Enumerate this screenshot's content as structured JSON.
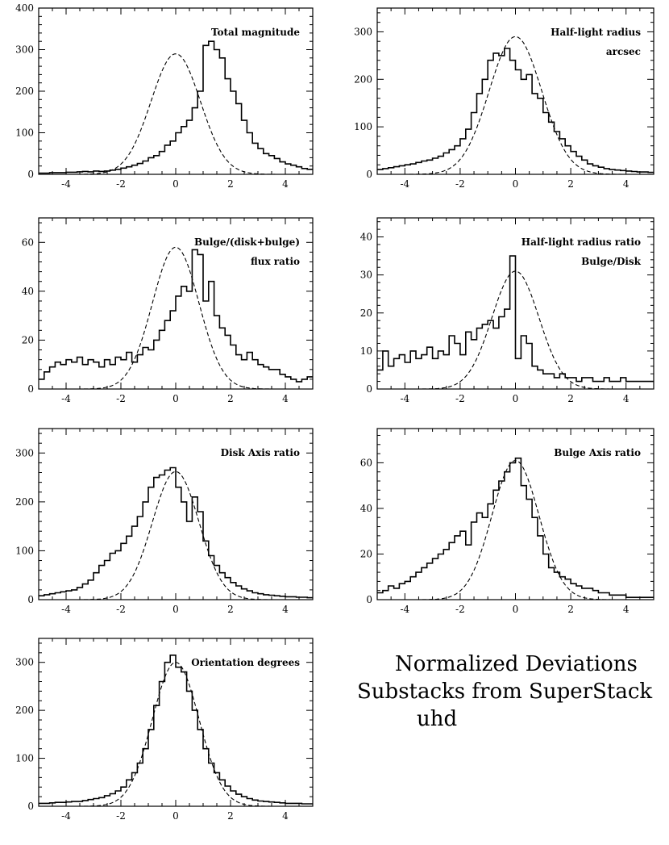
{
  "figure_caption": {
    "line1": "Normalized Deviations",
    "line2": "Substacks from SuperStack",
    "line3": "uhd"
  },
  "chart_data": [
    {
      "id": "p1",
      "type": "histogram",
      "title_lines": [
        "Total magnitude"
      ],
      "xlim": [
        -5,
        5
      ],
      "ylim": [
        0,
        400
      ],
      "xticks": [
        -4,
        -2,
        0,
        2,
        4
      ],
      "yticks": [
        0,
        100,
        200,
        300,
        400
      ],
      "gauss_peak": 290,
      "gauss_sigma": 0.9,
      "bin_edges_start": -5,
      "bin_width": 0.2,
      "counts": [
        3,
        3,
        4,
        4,
        4,
        5,
        5,
        6,
        7,
        6,
        8,
        7,
        8,
        10,
        12,
        15,
        18,
        22,
        26,
        32,
        40,
        45,
        55,
        70,
        80,
        100,
        115,
        130,
        160,
        200,
        310,
        320,
        300,
        280,
        230,
        200,
        170,
        130,
        100,
        75,
        62,
        50,
        45,
        38,
        30,
        25,
        22,
        18,
        14,
        12
      ]
    },
    {
      "id": "p2",
      "type": "histogram",
      "title_lines": [
        "Half-light radius",
        "arcsec"
      ],
      "xlim": [
        -5,
        5
      ],
      "ylim": [
        0,
        350
      ],
      "xticks": [
        -4,
        -2,
        0,
        2,
        4
      ],
      "yticks": [
        0,
        100,
        200,
        300
      ],
      "gauss_peak": 290,
      "gauss_sigma": 0.95,
      "bin_edges_start": -5,
      "bin_width": 0.2,
      "counts": [
        10,
        12,
        14,
        16,
        18,
        20,
        22,
        25,
        28,
        30,
        34,
        38,
        45,
        52,
        60,
        75,
        95,
        130,
        170,
        200,
        240,
        255,
        250,
        265,
        240,
        220,
        200,
        210,
        170,
        160,
        130,
        110,
        90,
        75,
        60,
        48,
        38,
        30,
        22,
        18,
        15,
        12,
        10,
        9,
        8,
        7,
        6,
        5,
        5,
        4
      ]
    },
    {
      "id": "p3",
      "type": "histogram",
      "title_lines": [
        "Bulge/(disk+bulge)",
        "flux ratio"
      ],
      "xlim": [
        -5,
        5
      ],
      "ylim": [
        0,
        70
      ],
      "xticks": [
        -4,
        -2,
        0,
        2,
        4
      ],
      "yticks": [
        0,
        20,
        40,
        60
      ],
      "gauss_peak": 58,
      "gauss_sigma": 0.85,
      "bin_edges_start": -5,
      "bin_width": 0.2,
      "counts": [
        4,
        7,
        9,
        11,
        10,
        12,
        11,
        13,
        10,
        12,
        11,
        9,
        12,
        10,
        13,
        12,
        15,
        11,
        14,
        17,
        16,
        20,
        24,
        28,
        32,
        38,
        42,
        40,
        57,
        55,
        36,
        44,
        30,
        25,
        22,
        18,
        14,
        12,
        15,
        12,
        10,
        9,
        8,
        8,
        6,
        5,
        4,
        3,
        4,
        5
      ]
    },
    {
      "id": "p4",
      "type": "histogram",
      "title_lines": [
        "Half-light radius ratio",
        "Bulge/Disk"
      ],
      "xlim": [
        -5,
        5
      ],
      "ylim": [
        0,
        45
      ],
      "xticks": [
        -4,
        -2,
        0,
        2,
        4
      ],
      "yticks": [
        0,
        10,
        20,
        30,
        40
      ],
      "gauss_peak": 31,
      "gauss_sigma": 0.85,
      "bin_edges_start": -5,
      "bin_width": 0.2,
      "counts": [
        5,
        10,
        6,
        8,
        9,
        7,
        10,
        8,
        9,
        11,
        8,
        10,
        9,
        14,
        12,
        9,
        15,
        13,
        16,
        17,
        18,
        16,
        19,
        21,
        35,
        8,
        14,
        12,
        6,
        5,
        4,
        4,
        3,
        4,
        3,
        3,
        2,
        3,
        3,
        2,
        2,
        3,
        2,
        2,
        3,
        2,
        2,
        2,
        2,
        2
      ]
    },
    {
      "id": "p5",
      "type": "histogram",
      "title_lines": [
        "Disk Axis ratio"
      ],
      "xlim": [
        -5,
        5
      ],
      "ylim": [
        0,
        350
      ],
      "xticks": [
        -4,
        -2,
        0,
        2,
        4
      ],
      "yticks": [
        0,
        100,
        200,
        300
      ],
      "gauss_peak": 262,
      "gauss_sigma": 0.85,
      "bin_edges_start": -5,
      "bin_width": 0.2,
      "counts": [
        8,
        10,
        12,
        14,
        16,
        18,
        20,
        25,
        32,
        40,
        55,
        70,
        80,
        95,
        100,
        115,
        130,
        150,
        170,
        200,
        230,
        250,
        255,
        265,
        270,
        230,
        200,
        160,
        210,
        180,
        120,
        90,
        70,
        55,
        45,
        35,
        28,
        22,
        18,
        14,
        12,
        10,
        9,
        8,
        7,
        6,
        6,
        5,
        5,
        4
      ]
    },
    {
      "id": "p6",
      "type": "histogram",
      "title_lines": [
        "Bulge Axis ratio"
      ],
      "xlim": [
        -5,
        5
      ],
      "ylim": [
        0,
        75
      ],
      "xticks": [
        -4,
        -2,
        0,
        2,
        4
      ],
      "yticks": [
        0,
        20,
        40,
        60
      ],
      "gauss_peak": 61,
      "gauss_sigma": 0.85,
      "bin_edges_start": -5,
      "bin_width": 0.2,
      "counts": [
        3,
        4,
        6,
        5,
        7,
        8,
        10,
        12,
        14,
        16,
        18,
        20,
        22,
        25,
        28,
        30,
        24,
        34,
        38,
        36,
        42,
        48,
        52,
        56,
        60,
        62,
        50,
        44,
        36,
        28,
        20,
        14,
        12,
        10,
        9,
        7,
        6,
        5,
        5,
        4,
        3,
        3,
        2,
        2,
        2,
        1,
        1,
        1,
        1,
        1
      ]
    },
    {
      "id": "p7",
      "type": "histogram",
      "title_lines": [
        "Orientation degrees"
      ],
      "xlim": [
        -5,
        5
      ],
      "ylim": [
        0,
        350
      ],
      "xticks": [
        -4,
        -2,
        0,
        2,
        4
      ],
      "yticks": [
        0,
        100,
        200,
        300
      ],
      "gauss_peak": 300,
      "gauss_sigma": 0.85,
      "bin_edges_start": -5,
      "bin_width": 0.2,
      "counts": [
        6,
        6,
        7,
        8,
        8,
        9,
        10,
        10,
        12,
        14,
        16,
        18,
        22,
        26,
        32,
        40,
        55,
        70,
        90,
        120,
        160,
        210,
        260,
        300,
        315,
        290,
        280,
        240,
        200,
        160,
        120,
        90,
        70,
        55,
        42,
        32,
        25,
        20,
        16,
        13,
        11,
        10,
        9,
        8,
        7,
        6,
        6,
        6,
        5,
        5
      ]
    }
  ]
}
